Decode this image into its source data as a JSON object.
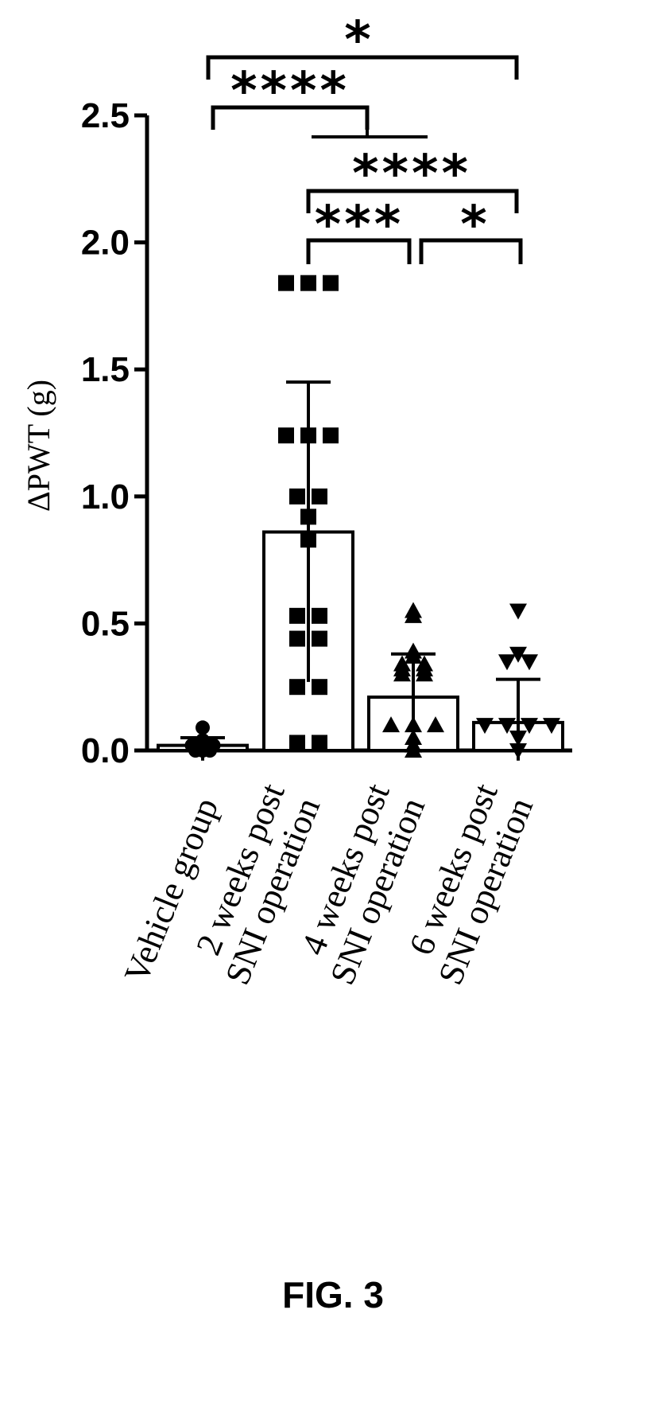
{
  "figure_label": "FIG. 3",
  "chart_data": {
    "type": "bar",
    "ylabel": "ΔPWT (g)",
    "ylim": [
      0,
      2.5
    ],
    "yticks": [
      "0.0",
      "0.5",
      "1.0",
      "1.5",
      "2.0",
      "2.5"
    ],
    "ytick_values": [
      0,
      0.5,
      1.0,
      1.5,
      2.0,
      2.5
    ],
    "grid": false,
    "categories": [
      [
        "Vehicle group"
      ],
      [
        "2 weeks post",
        "SNI operation"
      ],
      [
        "4 weeks post",
        "SNI operation"
      ],
      [
        "6 weeks post",
        "SNI operation"
      ]
    ],
    "means": [
      0.02,
      0.86,
      0.21,
      0.11
    ],
    "sd": [
      0.03,
      0.59,
      0.17,
      0.17
    ],
    "markers": [
      "circle",
      "square",
      "triangle-up",
      "triangle-down"
    ],
    "points": [
      [
        0.09,
        0.04,
        0.02,
        0.02,
        0.01,
        0.01,
        0.0,
        0.0,
        0.02,
        0.02,
        0.0,
        0.01
      ],
      [
        1.84,
        1.84,
        1.84,
        1.24,
        1.24,
        1.24,
        1.0,
        1.0,
        0.92,
        0.83,
        0.53,
        0.53,
        0.44,
        0.44,
        0.25,
        0.25,
        0.03,
        0.03
      ],
      [
        0.55,
        0.53,
        0.39,
        0.37,
        0.34,
        0.34,
        0.32,
        0.32,
        0.3,
        0.3,
        0.1,
        0.1,
        0.1,
        0.05,
        0.02,
        0.0
      ],
      [
        0.55,
        0.38,
        0.35,
        0.35,
        0.1,
        0.1,
        0.1,
        0.1,
        0.05,
        0.0
      ]
    ],
    "significance": [
      {
        "from": 0,
        "to": 3,
        "label": "*"
      },
      {
        "from": 0,
        "to": 1,
        "label": "****"
      },
      {
        "from": 1,
        "to": 3,
        "label": "****"
      },
      {
        "from": 1,
        "to": 2,
        "label": "***"
      },
      {
        "from": 2,
        "to": 3,
        "label": "*"
      }
    ]
  }
}
